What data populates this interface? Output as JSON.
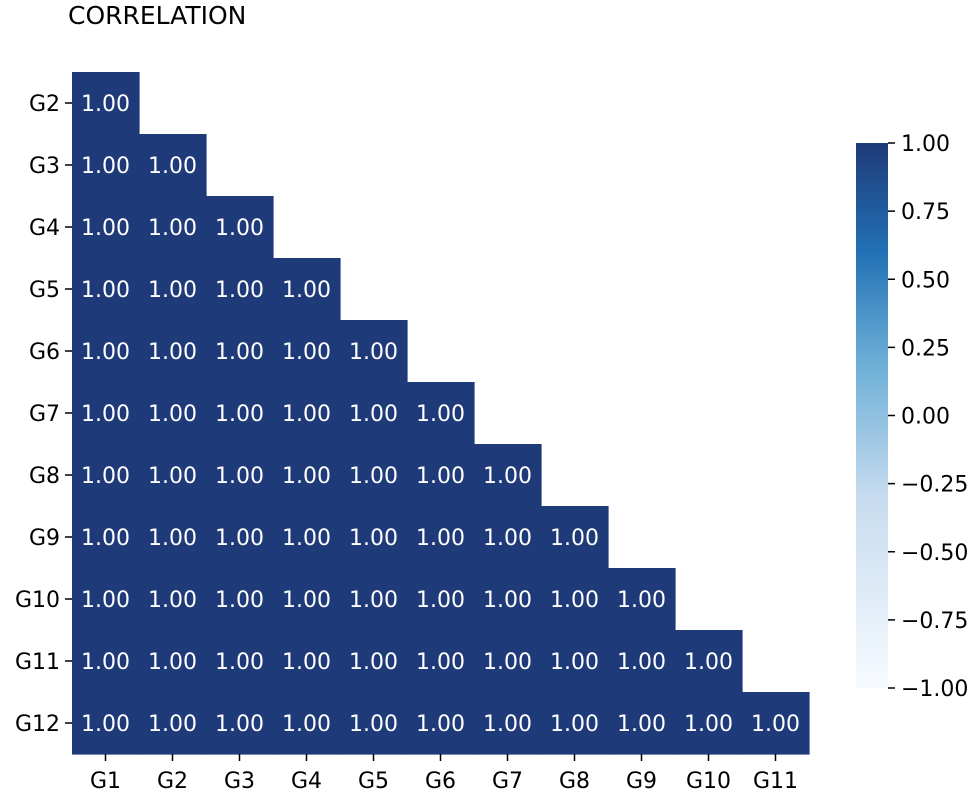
{
  "chart_data": {
    "type": "heatmap",
    "title": "CORRELATION",
    "x_categories": [
      "G1",
      "G2",
      "G3",
      "G4",
      "G5",
      "G6",
      "G7",
      "G8",
      "G9",
      "G10",
      "G11"
    ],
    "y_categories": [
      "G2",
      "G3",
      "G4",
      "G5",
      "G6",
      "G7",
      "G8",
      "G9",
      "G10",
      "G11",
      "G12"
    ],
    "mask": "upper-triangle",
    "rows": [
      {
        "label": "G2",
        "values": [
          1.0
        ]
      },
      {
        "label": "G3",
        "values": [
          1.0,
          1.0
        ]
      },
      {
        "label": "G4",
        "values": [
          1.0,
          1.0,
          1.0
        ]
      },
      {
        "label": "G5",
        "values": [
          1.0,
          1.0,
          1.0,
          1.0
        ]
      },
      {
        "label": "G6",
        "values": [
          1.0,
          1.0,
          1.0,
          1.0,
          1.0
        ]
      },
      {
        "label": "G7",
        "values": [
          1.0,
          1.0,
          1.0,
          1.0,
          1.0,
          1.0
        ]
      },
      {
        "label": "G8",
        "values": [
          1.0,
          1.0,
          1.0,
          1.0,
          1.0,
          1.0,
          1.0
        ]
      },
      {
        "label": "G9",
        "values": [
          1.0,
          1.0,
          1.0,
          1.0,
          1.0,
          1.0,
          1.0,
          1.0
        ]
      },
      {
        "label": "G10",
        "values": [
          1.0,
          1.0,
          1.0,
          1.0,
          1.0,
          1.0,
          1.0,
          1.0,
          1.0
        ]
      },
      {
        "label": "G11",
        "values": [
          1.0,
          1.0,
          1.0,
          1.0,
          1.0,
          1.0,
          1.0,
          1.0,
          1.0,
          1.0
        ]
      },
      {
        "label": "G12",
        "values": [
          1.0,
          1.0,
          1.0,
          1.0,
          1.0,
          1.0,
          1.0,
          1.0,
          1.0,
          1.0,
          1.0
        ]
      }
    ],
    "value_format": "0.00",
    "colorbar": {
      "min": -1.0,
      "max": 1.0,
      "ticks": [
        1.0,
        0.75,
        0.5,
        0.25,
        0.0,
        -0.25,
        -0.5,
        -0.75,
        -1.0
      ],
      "tick_labels": [
        "1.00",
        "0.75",
        "0.50",
        "0.25",
        "0.00",
        "−0.25",
        "−0.50",
        "−0.75",
        "−1.00"
      ],
      "colormap": "Blues",
      "color_low": "#f7fbff",
      "color_high": "#1f3a78"
    },
    "cell_text_color": "#ffffff",
    "grid": false
  }
}
